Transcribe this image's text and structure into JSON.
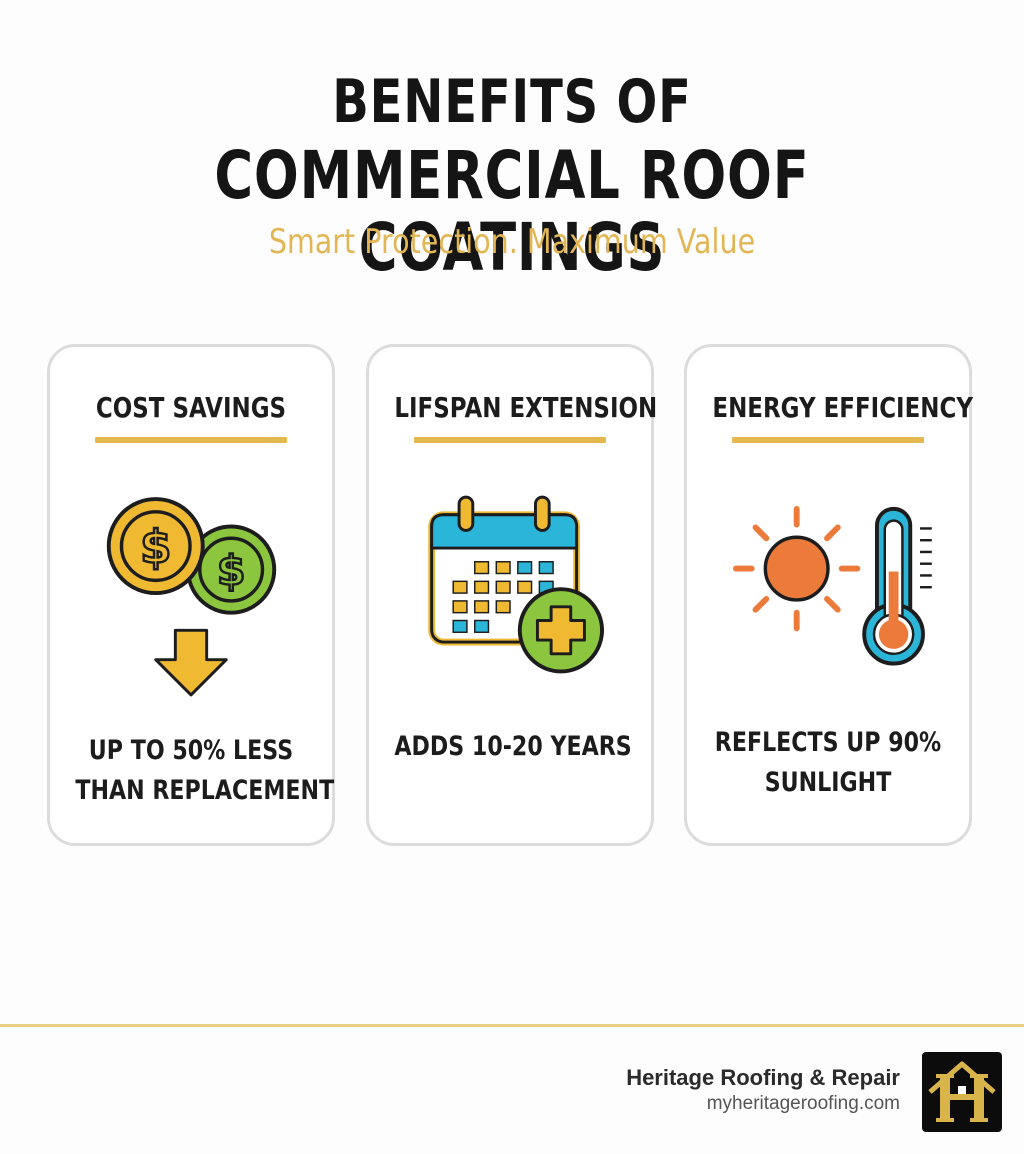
{
  "header": {
    "title_line1": "BENEFITS OF",
    "title_line2": "COMMERCIAL ROOF COATINGS",
    "subtitle": "Smart Protection. Maximum Value"
  },
  "cards": [
    {
      "title": "COST SAVINGS",
      "icon": "coins-down-arrow-icon",
      "line1": "UP TO 50% LESS",
      "line2": "THAN REPLACEMENT"
    },
    {
      "title": "LIFSPAN EXTENSION",
      "icon": "calendar-plus-icon",
      "line1": "ADDS 10-20 YEARS",
      "line2": ""
    },
    {
      "title": "ENERGY EFFICIENCY",
      "icon": "sun-thermometer-icon",
      "line1": "REFLECTS UP  90%",
      "line2": "SUNLIGHT"
    }
  ],
  "footer": {
    "company": "Heritage Roofing & Repair",
    "url": "myheritageroofing.com",
    "logo_icon": "house-h-logo-icon"
  },
  "colors": {
    "accent_gold": "#e4b74f",
    "subtitle_gold": "#e2b655",
    "coin_green": "#8cc63f",
    "calendar_blue": "#2bb5d8",
    "sun_orange": "#ec7a3a"
  }
}
